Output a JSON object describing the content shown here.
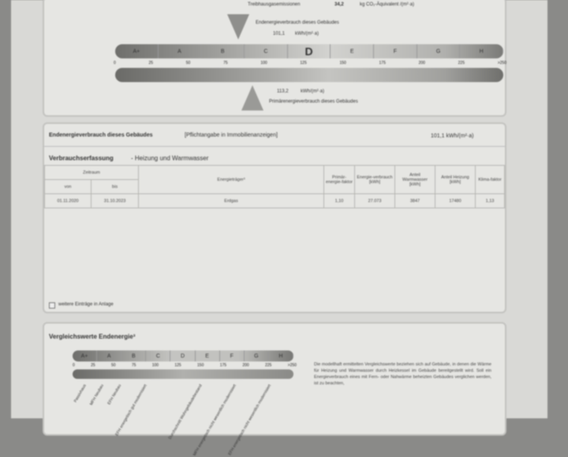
{
  "top": {
    "ghg_label": "Treibhausgasemissionen",
    "ghg_value": "34,2",
    "ghg_unit": "kg CO₂-Äquivalent /(m²·a)",
    "end_label": "Endenergieverbrauch dieses Gebäudes",
    "end_value": "101,1",
    "end_unit": "kWh/(m²·a)",
    "prim_value": "113,2",
    "prim_unit": "kWh/(m²·a)",
    "prim_label": "Primärenergieverbrauch dieses Gebäudes",
    "classes": [
      "A+",
      "A",
      "B",
      "C",
      "D",
      "E",
      "F",
      "G",
      "H"
    ],
    "current_class": "D",
    "ticks": [
      "0",
      "25",
      "50",
      "75",
      "100",
      "125",
      "150",
      "175",
      "200",
      "225",
      ">250"
    ]
  },
  "consumption": {
    "title": "Endenergieverbrauch dieses Gebäudes",
    "note": "[Pflichtangabe in Immobilienanzeigen]",
    "value": "101,1 kWh/(m²·a)",
    "subtitle": "Verbrauchserfassung",
    "subtitle2": "- Heizung und Warmwasser",
    "headers": {
      "period": "Zeitraum",
      "from": "von",
      "to": "bis",
      "carrier": "Energieträger³",
      "factor": "Primär-energie-faktor",
      "use": "Energie-verbrauch [kWh]",
      "ww": "Anteil Warmwasser [kWh]",
      "heat": "Anteil Heizung [kWh]",
      "klima": "Klima-faktor"
    },
    "rows": [
      {
        "from": "01.11.2020",
        "to": "31.10.2023",
        "carrier": "Erdgas",
        "factor": "1,10",
        "use": "27.073",
        "ww": "3847",
        "heat": "17480",
        "klima": "1,13"
      }
    ],
    "more": "weitere Einträge in Anlage"
  },
  "compare": {
    "title": "Vergleichswerte Endenergie³",
    "classes": [
      "A+",
      "A",
      "B",
      "C",
      "D",
      "E",
      "F",
      "G",
      "H"
    ],
    "ticks": [
      "0",
      "25",
      "50",
      "75",
      "100",
      "125",
      "150",
      "175",
      "200",
      "225",
      ">250"
    ],
    "refs": [
      "Passivhaus",
      "MFH Neubau",
      "EFH Neubau",
      "EFH energetisch gut modernisiert",
      "Durchschnitt Wohngebäudebestand",
      "MFH energetisch nicht wesentlich modernisiert",
      "EFH energetisch nicht wesentlich modernisiert"
    ],
    "text": "Die modellhaft ermittelten Vergleichswerte beziehen sich auf Gebäude, in denen die Wärme für Heizung und Warmwasser durch Heizkessel im Gebäude bereitgestellt wird. Soll ein Energieverbrauch eines mit Fern- oder Nahwärme beheizten Gebäudes verglichen werden, ist zu beachten,"
  }
}
